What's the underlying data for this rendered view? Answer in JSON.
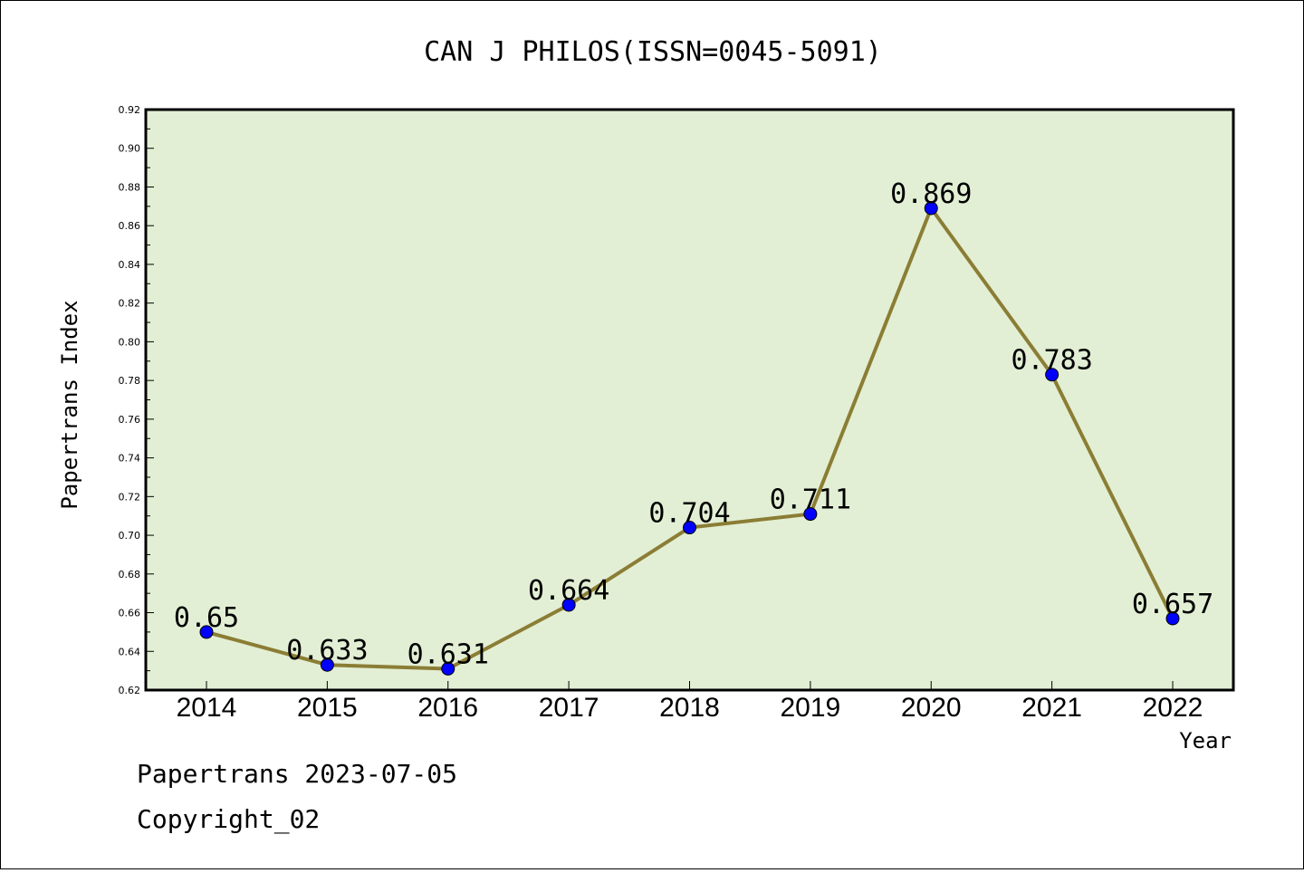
{
  "chart_data": {
    "type": "line",
    "title": "CAN J PHILOS(ISSN=0045-5091)",
    "xlabel": "Year",
    "ylabel": "Papertrans Index",
    "categories": [
      "2014",
      "2015",
      "2016",
      "2017",
      "2018",
      "2019",
      "2020",
      "2021",
      "2022"
    ],
    "series": [
      {
        "values": [
          0.65,
          0.633,
          0.631,
          0.664,
          0.704,
          0.711,
          0.869,
          0.783,
          0.657
        ],
        "labels": [
          "0.65",
          "0.633",
          "0.631",
          "0.664",
          "0.704",
          "0.711",
          "0.869",
          "0.783",
          "0.657"
        ]
      }
    ],
    "ylim": [
      0.62,
      0.92
    ],
    "yticks": [
      "0.62",
      "0.64",
      "0.66",
      "0.68",
      "0.70",
      "0.72",
      "0.74",
      "0.76",
      "0.78",
      "0.80",
      "0.82",
      "0.84",
      "0.86",
      "0.88",
      "0.90",
      "0.92"
    ],
    "grid": false,
    "colors": {
      "plot_background": "#e2efd4",
      "line": "#8b7d35",
      "marker": "#0000ff"
    }
  },
  "footer": {
    "date_line": "Papertrans 2023-07-05",
    "copyright": "Copyright_02"
  }
}
